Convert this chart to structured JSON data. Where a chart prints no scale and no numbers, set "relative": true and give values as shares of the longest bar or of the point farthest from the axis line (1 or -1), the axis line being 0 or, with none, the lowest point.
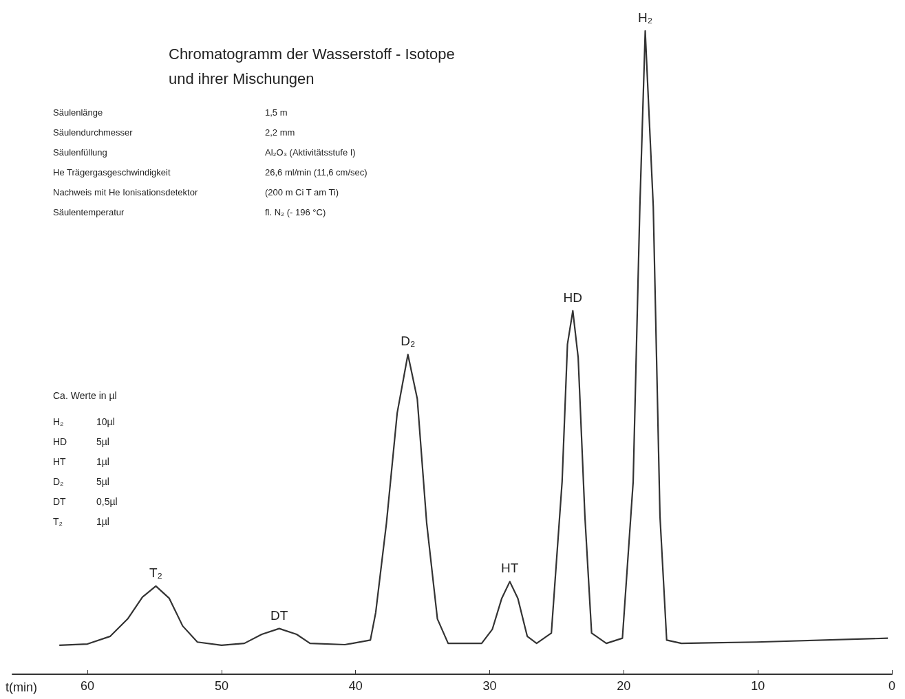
{
  "chart_data": {
    "type": "line",
    "title": "Chromatogramm der Wasserstoff - Isotope und ihrer Mischungen",
    "xlabel": "t(min)",
    "relative": true,
    "xlim": [
      65.6,
      0
    ],
    "xticks": [
      60,
      50,
      40,
      30,
      20,
      10,
      0
    ],
    "grid": false,
    "marker": "none",
    "line_style": "solid",
    "x": [
      62.1,
      60,
      58.3,
      57,
      55.9,
      54.9,
      53.9,
      52.9,
      51.8,
      50,
      48.3,
      47,
      45.7,
      44.4,
      43.4,
      40.8,
      38.9,
      38.5,
      37.7,
      36.9,
      36.1,
      35.4,
      34.7,
      33.9,
      33.1,
      30.6,
      29.8,
      29.1,
      28.5,
      27.9,
      27.2,
      26.5,
      25.4,
      24.6,
      24.2,
      23.8,
      23.4,
      22.9,
      22.4,
      21.3,
      20.1,
      19.3,
      18.8,
      18.4,
      17.8,
      17.3,
      16.8,
      15.7,
      10.1,
      0.3
    ],
    "series": [
      {
        "color": "#333333",
        "values": [
          0.045,
          0.047,
          0.059,
          0.086,
          0.12,
          0.137,
          0.118,
          0.075,
          0.05,
          0.045,
          0.048,
          0.062,
          0.071,
          0.062,
          0.048,
          0.046,
          0.053,
          0.096,
          0.235,
          0.406,
          0.497,
          0.428,
          0.235,
          0.086,
          0.048,
          0.048,
          0.07,
          0.118,
          0.144,
          0.118,
          0.059,
          0.048,
          0.064,
          0.299,
          0.513,
          0.565,
          0.492,
          0.246,
          0.064,
          0.048,
          0.056,
          0.299,
          0.727,
          1.0,
          0.727,
          0.246,
          0.053,
          0.048,
          0.05,
          0.056
        ]
      }
    ],
    "annotations": [
      "Säulenlänge",
      "1,5 m",
      "Säulendurchmesser",
      "2,2 mm",
      "Säulenfüllung",
      "Al₂O₃ (Aktivitätsstufe I)",
      "He Trägergasgeschwindigkeit",
      "26,6 ml/min (11,6 cm/sec)",
      "Nachweis mit He Ionisationsdetektor",
      "(200 m Ci T am Ti)",
      "Säulentemperatur",
      "fl. N₂ (- 196 °C)",
      "Ca. Werte in µl",
      "H₂",
      "10µl",
      "HD",
      "5µl",
      "HT",
      "1µl",
      "D₂",
      "5µl",
      "DT",
      "0,5µl",
      "T₂",
      "1µl",
      {
        "text": "T₂",
        "x": 54.9,
        "y": 0.137
      },
      {
        "text": "DT",
        "x": 45.7,
        "y": 0.071
      },
      {
        "text": "D₂",
        "x": 36.1,
        "y": 0.497
      },
      {
        "text": "HT",
        "x": 28.5,
        "y": 0.144
      },
      {
        "text": "HD",
        "x": 23.8,
        "y": 0.565
      },
      {
        "text": "H₂",
        "x": 18.4,
        "y": 1.0
      }
    ]
  }
}
